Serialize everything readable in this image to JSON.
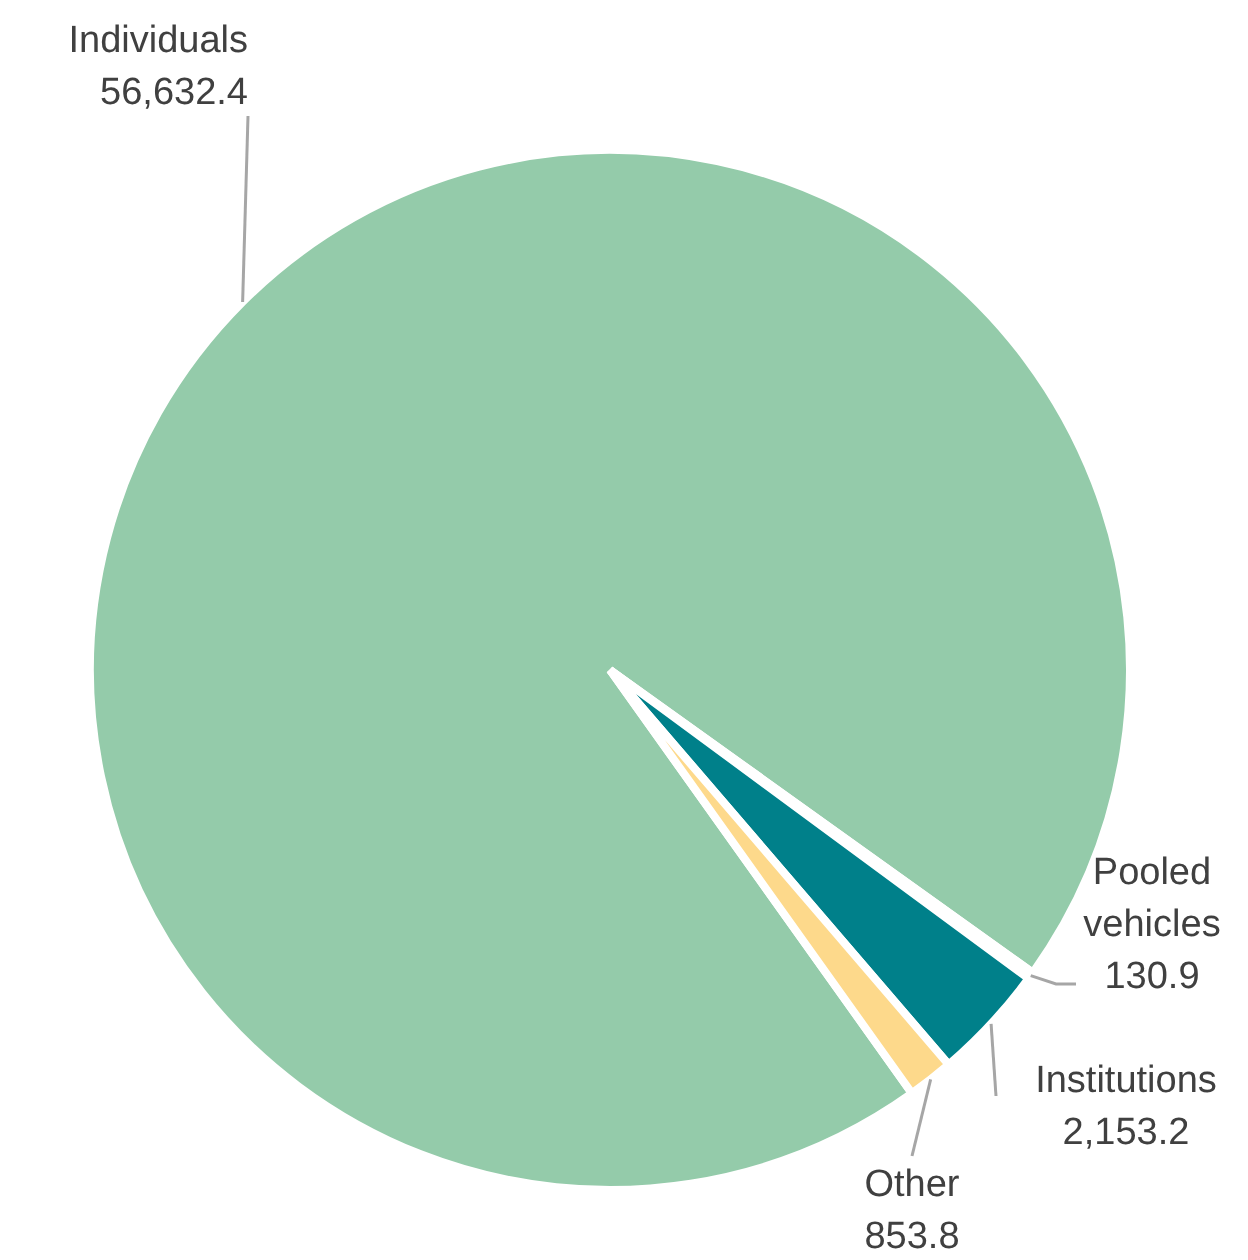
{
  "chart_data": {
    "type": "pie",
    "categories": [
      "Individuals",
      "Pooled vehicles",
      "Institutions",
      "Other"
    ],
    "values": [
      56632.4,
      130.9,
      2153.2,
      853.8
    ],
    "value_labels": [
      "56,632.4",
      "130.9",
      "2,153.2",
      "853.8"
    ],
    "colors": [
      "#94cbaa",
      "#ffffff",
      "#00808a",
      "#fdd98b"
    ]
  }
}
